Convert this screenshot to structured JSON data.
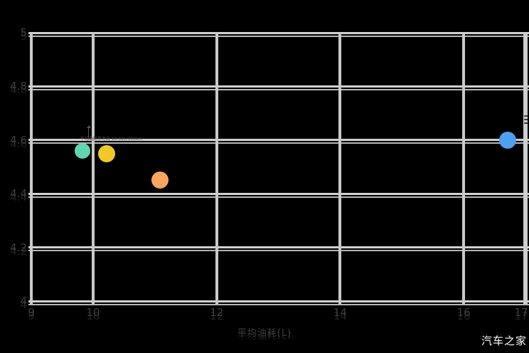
{
  "watermark": "汽车之家",
  "colors": {
    "background": "#000000",
    "gridline": "#d1d1d1",
    "gridline_echo": "#b6b6b6",
    "tick_label": "#3e3e3e",
    "watermark_text": "#ffffff"
  },
  "chart_data": {
    "type": "scatter",
    "title": "",
    "xlabel": "平均油耗(L)",
    "ylabel": "",
    "xlim": [
      9,
      17
    ],
    "ylim": [
      4,
      5
    ],
    "grid": true,
    "x_ticks": [
      {
        "value": 9,
        "label": "9"
      },
      {
        "value": 10,
        "label": "10"
      },
      {
        "value": 12,
        "label": "12"
      },
      {
        "value": 14,
        "label": "14"
      },
      {
        "value": 16,
        "label": "16"
      },
      {
        "value": 17,
        "label": "17"
      }
    ],
    "y_ticks": [
      {
        "value": 5,
        "label": "5"
      },
      {
        "value": 4.8,
        "label": "4.8"
      },
      {
        "value": 4.6,
        "label": "4.6"
      },
      {
        "value": 4.4,
        "label": "4.4"
      },
      {
        "value": 4.2,
        "label": "4.2"
      },
      {
        "value": 4,
        "label": "4"
      }
    ],
    "points": [
      {
        "name": "bubble-teal",
        "x": 9.83,
        "y": 4.56,
        "color": "#5fd6b0",
        "radius_px": 11
      },
      {
        "name": "bubble-yellow",
        "x": 10.22,
        "y": 4.55,
        "color": "#f0c929",
        "radius_px": 12
      },
      {
        "name": "bubble-orange",
        "x": 11.08,
        "y": 4.45,
        "color": "#f9a45f",
        "radius_px": 12
      },
      {
        "name": "bubble-blue",
        "x": 16.71,
        "y": 4.6,
        "color": "#4d9fef",
        "radius_px": 12
      }
    ],
    "annotation": {
      "x": 9.92,
      "text": "平均油耗参考线 10.02L/100km"
    }
  }
}
